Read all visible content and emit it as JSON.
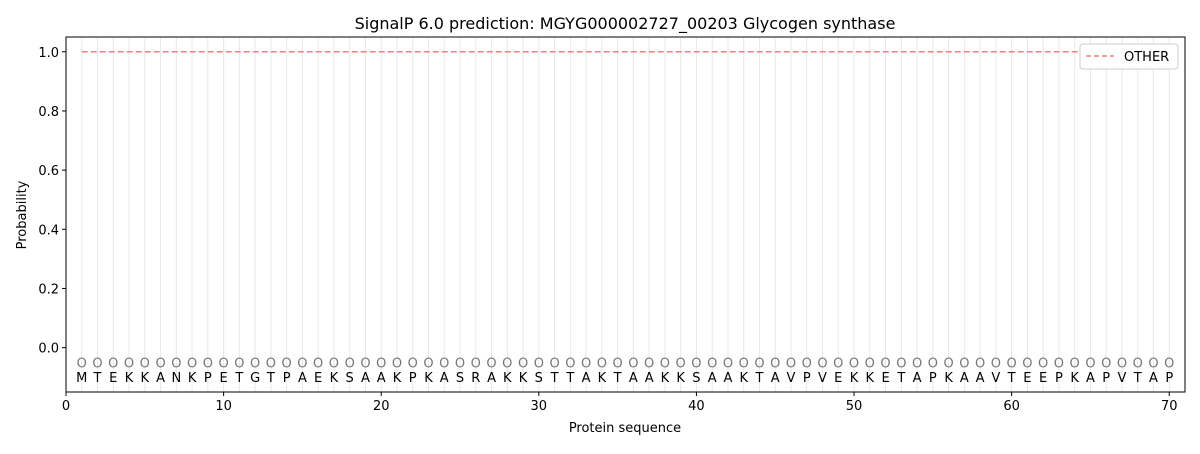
{
  "chart_data": {
    "type": "line",
    "title": "SignalP 6.0 prediction: MGYG000002727_00203 Glycogen synthase",
    "xlabel": "Protein sequence",
    "ylabel": "Probability",
    "xlim": [
      0,
      71
    ],
    "ylim": [
      -0.15,
      1.05
    ],
    "xticks": [
      0,
      10,
      20,
      30,
      40,
      50,
      60,
      70
    ],
    "yticks": [
      "0.0",
      "0.2",
      "0.4",
      "0.6",
      "0.8",
      "1.0"
    ],
    "legend_position": "top-right",
    "sequence": [
      "M",
      "T",
      "E",
      "K",
      "K",
      "A",
      "N",
      "K",
      "P",
      "E",
      "T",
      "G",
      "T",
      "P",
      "A",
      "E",
      "K",
      "S",
      "A",
      "A",
      "K",
      "P",
      "K",
      "A",
      "S",
      "R",
      "A",
      "K",
      "K",
      "S",
      "T",
      "T",
      "A",
      "K",
      "T",
      "A",
      "A",
      "K",
      "K",
      "S",
      "A",
      "A",
      "K",
      "T",
      "A",
      "V",
      "P",
      "V",
      "E",
      "K",
      "K",
      "E",
      "T",
      "A",
      "P",
      "K",
      "A",
      "A",
      "V",
      "T",
      "E",
      "E",
      "P",
      "K",
      "A",
      "P",
      "V",
      "T",
      "A",
      "P"
    ],
    "marker_label": "O",
    "series": [
      {
        "name": "OTHER",
        "color": "#f08080",
        "style": "dashed",
        "x": [
          1,
          70
        ],
        "y": [
          1.0,
          1.0
        ]
      }
    ]
  }
}
